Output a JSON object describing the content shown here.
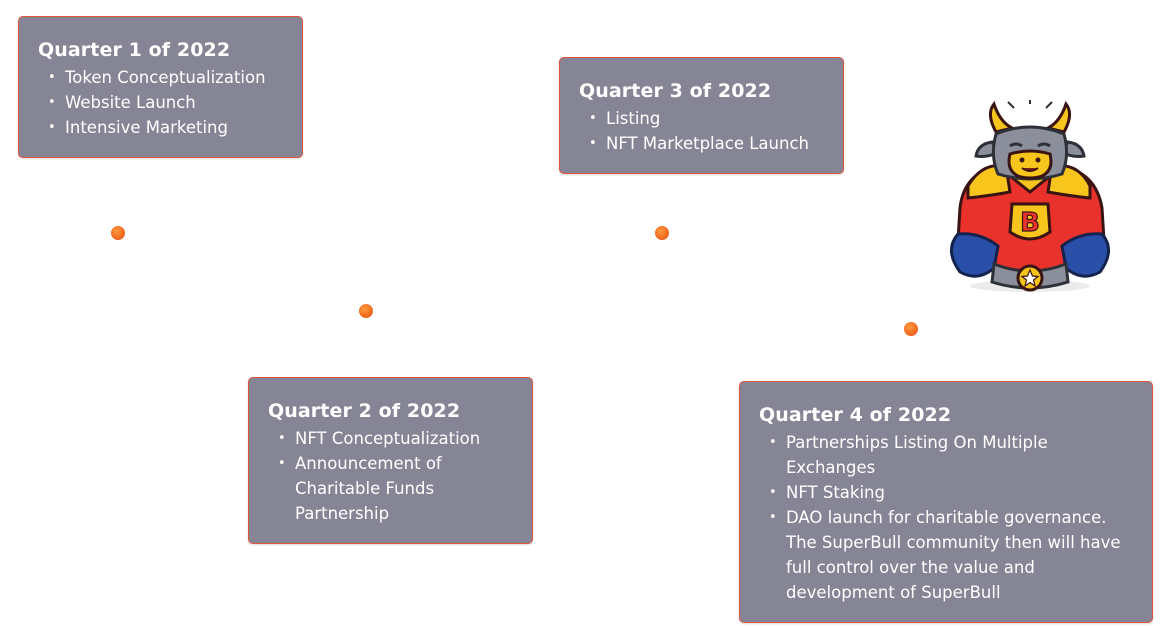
{
  "milestones": [
    {
      "title": "Quarter 1 of 2022",
      "items": [
        "Token Conceptualization",
        "Website Launch",
        "Intensive Marketing"
      ]
    },
    {
      "title": "Quarter 2 of 2022",
      "items": [
        "NFT Conceptualization",
        "Announcement of Charitable Funds Partnership"
      ]
    },
    {
      "title": "Quarter 3 of 2022",
      "items": [
        "Listing",
        "NFT Marketplace Launch"
      ]
    },
    {
      "title": "Quarter 4 of 2022",
      "items": [
        "Partnerships Listing On Multiple Exchanges",
        "NFT Staking",
        "DAO launch for charitable governance. The SuperBull community then will have full control over the value and development of SuperBull"
      ]
    }
  ],
  "mascot": {
    "icon": "superbull-mascot-icon",
    "badge_letter": "B"
  },
  "colors": {
    "card_bg": "#858595",
    "card_border": "#e0553a",
    "dot": "#f26a21",
    "mascot_suit": "#e8322b",
    "mascot_gold": "#f7c51c",
    "mascot_glove": "#2a4fa8"
  }
}
